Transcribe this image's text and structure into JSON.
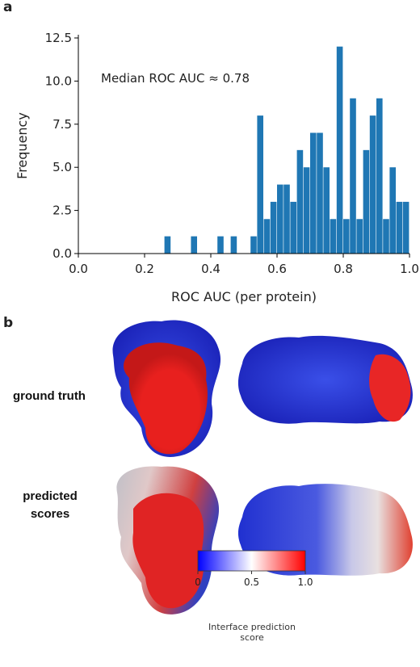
{
  "chart_data": {
    "type": "histogram",
    "xlabel": "ROC AUC (per protein)",
    "ylabel": "Frequency",
    "annotation": "Median ROC AUC ≈ 0.78",
    "color": "#1f77b4",
    "bins": [
      0,
      0.02,
      0.04,
      0.06,
      0.08,
      0.1,
      0.12,
      0.14,
      0.16,
      0.18,
      0.2,
      0.22,
      0.24,
      0.26,
      0.28,
      0.3,
      0.32,
      0.34,
      0.36,
      0.38,
      0.4,
      0.42,
      0.44,
      0.46,
      0.48,
      0.5,
      0.52,
      0.54,
      0.56,
      0.58,
      0.6,
      0.62,
      0.64,
      0.66,
      0.68,
      0.7,
      0.72,
      0.74,
      0.76,
      0.78,
      0.8,
      0.82,
      0.84,
      0.86,
      0.88,
      0.9,
      0.92,
      0.94,
      0.96,
      0.98,
      1
    ],
    "counts": [
      0,
      0,
      0,
      0,
      0,
      0,
      0,
      0,
      0,
      0,
      0,
      0,
      0,
      1,
      0,
      0,
      0,
      1,
      0,
      0,
      0,
      1,
      0,
      1,
      0,
      0,
      1,
      8,
      2,
      3,
      4,
      4,
      3,
      6,
      5,
      7,
      7,
      5,
      2,
      12,
      2,
      9,
      2,
      6,
      8,
      9,
      2,
      5,
      3,
      3
    ],
    "xlim": [
      0,
      1
    ],
    "ylim": [
      0,
      12.5
    ],
    "xticks": [
      {
        "value": 0,
        "label": "0.0"
      },
      0.2,
      0.4,
      0.6,
      0.8,
      {
        "value": 1,
        "label": "1.0"
      }
    ],
    "yticks": [
      {
        "value": 0,
        "label": "0.0"
      },
      2.5,
      {
        "value": 5,
        "label": "5.0"
      },
      7.5,
      {
        "value": 10,
        "label": "10.0"
      },
      12.5
    ]
  },
  "panel_labels": [
    "a",
    "b"
  ],
  "panel_b": {
    "row_labels": [
      "ground truth",
      "predicted scores"
    ],
    "colorbar": {
      "colors": [
        "#0000ff",
        "#ffffff",
        "#ff0000"
      ],
      "lim": [
        0,
        1
      ],
      "ticks": [
        0,
        0.5,
        {
          "value": 1,
          "label": "1.0"
        }
      ],
      "label": "Interface prediction score"
    }
  }
}
